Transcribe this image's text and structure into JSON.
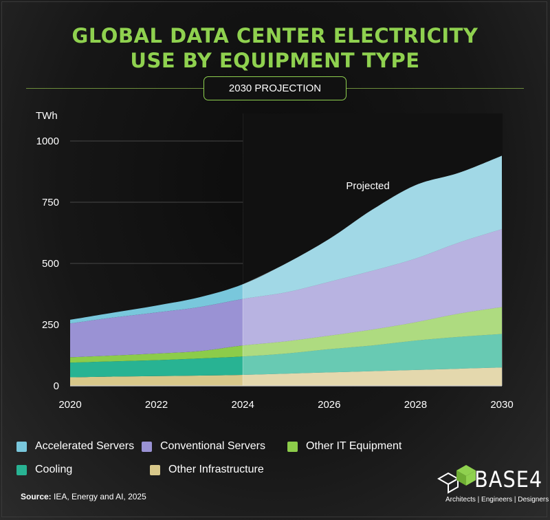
{
  "header": {
    "title_line1": "GLOBAL DATA CENTER ELECTRICITY",
    "title_line2": "USE BY EQUIPMENT TYPE",
    "badge": "2030 PROJECTION"
  },
  "colors": {
    "title": "#8fd14f",
    "accelerated": "#79c7dc",
    "conventional": "#9a92d4",
    "other_it": "#8ccc4a",
    "cooling": "#28b393",
    "infrastructure": "#d8c88a"
  },
  "chart_data": {
    "type": "area",
    "stacked": true,
    "ylabel": "TWh",
    "ylim": [
      0,
      1000
    ],
    "yticks": [
      0,
      250,
      500,
      750,
      1000
    ],
    "xlim": [
      2020,
      2030
    ],
    "xticks": [
      2020,
      2022,
      2024,
      2026,
      2028,
      2030
    ],
    "projection_start": 2024,
    "annotation": "Projected",
    "grid": "horizontal",
    "x": [
      2020,
      2021,
      2022,
      2023,
      2024,
      2025,
      2026,
      2027,
      2028,
      2029,
      2030
    ],
    "series": [
      {
        "name": "Other Infrastructure",
        "key": "infrastructure",
        "values": [
          35,
          38,
          40,
          42,
          45,
          50,
          55,
          60,
          65,
          70,
          75
        ]
      },
      {
        "name": "Cooling",
        "key": "cooling",
        "values": [
          60,
          62,
          65,
          70,
          75,
          82,
          95,
          105,
          120,
          130,
          137
        ]
      },
      {
        "name": "Other IT Equipment",
        "key": "other_it",
        "values": [
          22,
          24,
          27,
          30,
          45,
          50,
          55,
          65,
          75,
          95,
          110
        ]
      },
      {
        "name": "Conventional Servers",
        "key": "conventional",
        "values": [
          138,
          155,
          168,
          180,
          190,
          200,
          220,
          240,
          260,
          290,
          318
        ]
      },
      {
        "name": "Accelerated Servers",
        "key": "accelerated",
        "values": [
          15,
          20,
          28,
          40,
          60,
          118,
          175,
          250,
          300,
          285,
          300
        ]
      }
    ]
  },
  "legend": {
    "items": [
      {
        "label": "Accelerated Servers",
        "key": "accelerated"
      },
      {
        "label": "Conventional Servers",
        "key": "conventional"
      },
      {
        "label": "Other IT Equipment",
        "key": "other_it"
      },
      {
        "label": "Cooling",
        "key": "cooling"
      },
      {
        "label": "Other Infrastructure",
        "key": "infrastructure"
      }
    ]
  },
  "footer": {
    "source_label": "Source:",
    "source_text": " IEA, Energy and AI, 2025"
  },
  "logo": {
    "name": "BASE4",
    "tagline": "Architects | Engineers | Designers"
  }
}
